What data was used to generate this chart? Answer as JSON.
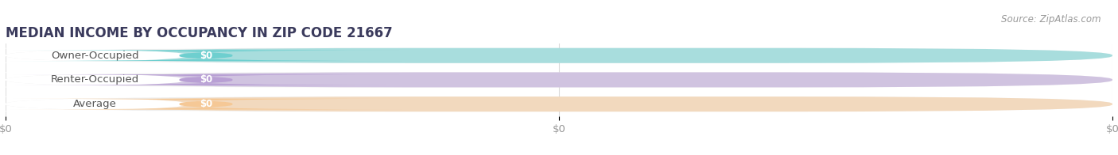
{
  "title": "MEDIAN INCOME BY OCCUPANCY IN ZIP CODE 21667",
  "source_text": "Source: ZipAtlas.com",
  "categories": [
    "Owner-Occupied",
    "Renter-Occupied",
    "Average"
  ],
  "values": [
    0,
    0,
    0
  ],
  "bar_colors": [
    "#6ecfcf",
    "#b89fd4",
    "#f5c896"
  ],
  "bar_bg_color": "#efefef",
  "label_bg_color": "#ffffff",
  "label_color": "#555555",
  "value_label_color": "#ffffff",
  "tick_label_color": "#999999",
  "title_color": "#3a3a5c",
  "source_color": "#999999",
  "background_color": "#ffffff",
  "bar_height": 0.62,
  "title_fontsize": 12,
  "label_fontsize": 9.5,
  "source_fontsize": 8.5,
  "value_fontsize": 8.5
}
